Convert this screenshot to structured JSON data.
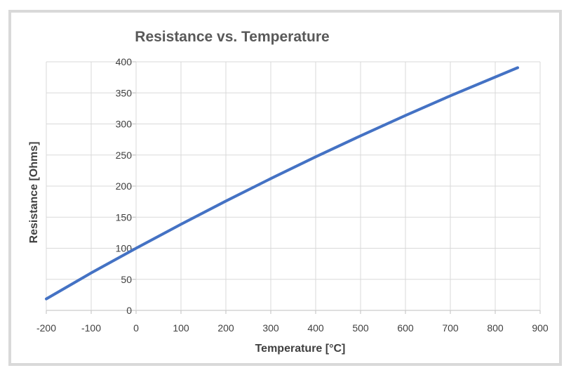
{
  "chart_data": {
    "type": "line",
    "title": "Resistance vs. Temperature",
    "xlabel": "Temperature [°C]",
    "ylabel": "Resistance [Ohms]",
    "xlim": [
      -200,
      900
    ],
    "ylim": [
      0,
      400
    ],
    "x_ticks": [
      "-200",
      "-100",
      "0",
      "100",
      "200",
      "300",
      "400",
      "500",
      "600",
      "700",
      "800",
      "900"
    ],
    "y_ticks": [
      "0",
      "50",
      "100",
      "150",
      "200",
      "250",
      "300",
      "350",
      "400"
    ],
    "grid": true,
    "series_color": "#4472c4",
    "series": [
      {
        "x": [
          -200,
          -100,
          0,
          100,
          200,
          300,
          400,
          500,
          600,
          700,
          850
        ],
        "y": [
          18.5,
          60.3,
          100,
          138.5,
          175.9,
          212.1,
          247.1,
          280.9,
          313.7,
          345.3,
          390.5
        ]
      }
    ]
  }
}
